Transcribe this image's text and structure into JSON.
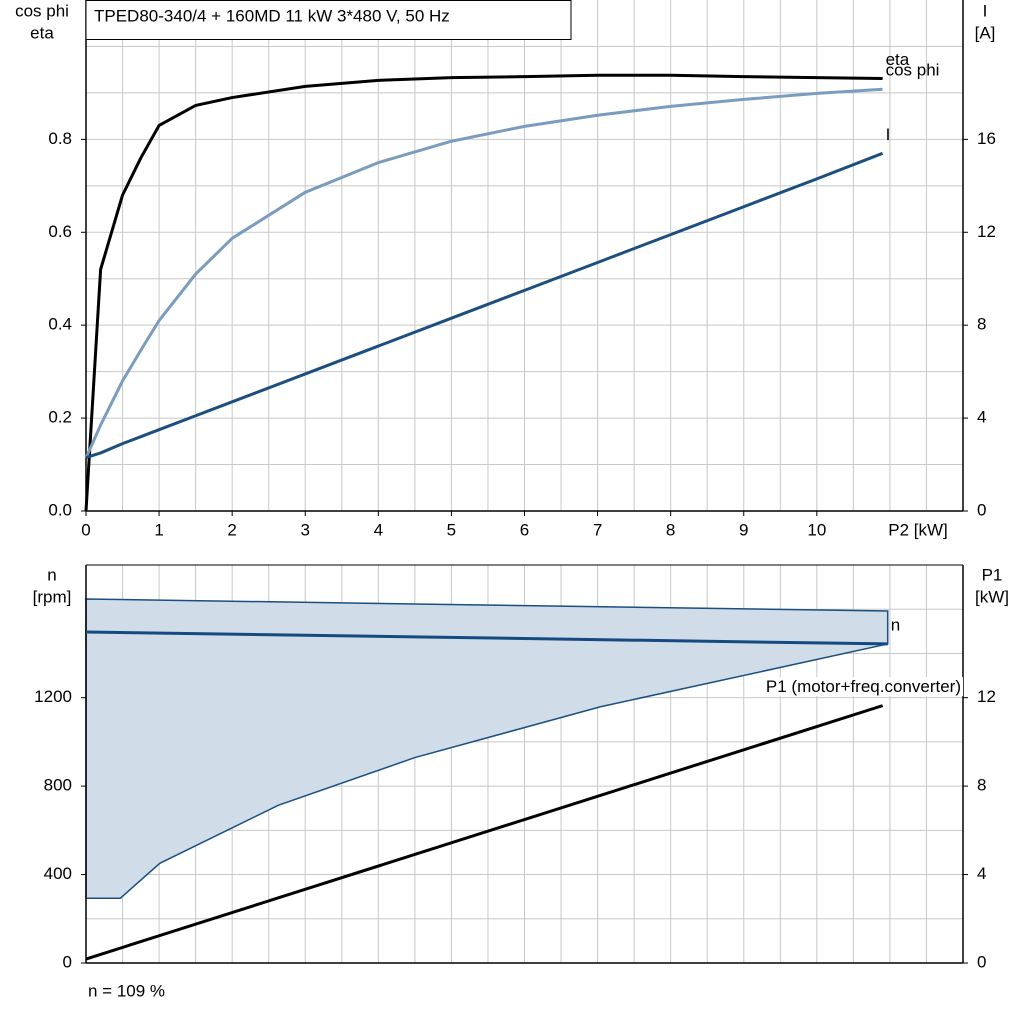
{
  "chart_data": [
    {
      "type": "line",
      "title": "TPED80-340/4 + 160MD   11 kW   3*480 V, 50 Hz",
      "ylabel": [
        "cos phi",
        "eta"
      ],
      "y2label": [
        "I",
        "[A]"
      ],
      "xlabel": "P2 [kW]",
      "x": [
        0,
        0.2,
        0.5,
        0.75,
        1,
        1.5,
        2,
        3,
        4,
        5,
        6,
        7,
        8,
        9,
        10,
        10.9
      ],
      "series": [
        {
          "name": "eta",
          "color": "#000000",
          "values": [
            0,
            0.52,
            0.68,
            0.76,
            0.83,
            0.873,
            0.89,
            0.914,
            0.927,
            0.933,
            0.935,
            0.938,
            0.938,
            0.935,
            0.933,
            0.931
          ]
        },
        {
          "name": "cos phi",
          "color": "#7a9cbf",
          "values": [
            0.114,
            0.185,
            0.28,
            0.346,
            0.41,
            0.51,
            0.587,
            0.686,
            0.75,
            0.796,
            0.828,
            0.852,
            0.871,
            0.886,
            0.899,
            0.908
          ]
        },
        {
          "name": "I",
          "color": "#1a4f80",
          "axis": "y2",
          "values": [
            2.3,
            2.5,
            2.9,
            3.2,
            3.5,
            4.1,
            4.7,
            5.9,
            7.1,
            8.3,
            9.5,
            10.7,
            11.9,
            13.1,
            14.3,
            15.4
          ]
        }
      ],
      "xlim": [
        0,
        12
      ],
      "xticks": [
        0,
        1,
        2,
        3,
        4,
        5,
        6,
        7,
        8,
        9,
        10
      ],
      "xgrid": [
        0.5,
        1,
        1.5,
        2,
        2.5,
        3,
        3.5,
        4,
        4.5,
        5,
        5.5,
        6,
        6.5,
        7,
        7.5,
        8,
        8.5,
        9,
        9.5,
        10,
        10.5,
        11,
        11.5
      ],
      "ylim": [
        0,
        1.1
      ],
      "yticks": [
        {
          "value": 0,
          "label": "0.0"
        },
        0.2,
        0.4,
        0.6,
        0.8
      ],
      "ygrid": [
        0.1,
        0.2,
        0.3,
        0.4,
        0.5,
        0.6,
        0.7,
        0.8,
        0.9,
        1.0
      ],
      "y2lim": [
        0,
        22
      ],
      "y2ticks": [
        0,
        4,
        8,
        12,
        16
      ],
      "grid": true
    },
    {
      "type": "line",
      "ylabel": [
        "n",
        "[rpm]"
      ],
      "y2label": [
        "P1",
        "[kW]"
      ],
      "annotation": "n = 109 %",
      "band": {
        "x_upper": [
          0,
          10.97
        ],
        "upper": [
          1646,
          1592
        ],
        "x_lower": [
          0,
          0.47,
          1.01,
          2.63,
          4.5,
          7.04,
          10.97
        ],
        "lower": [
          293,
          293,
          451,
          713,
          929,
          1159,
          1443
        ],
        "color": "#d0dce8",
        "edge": "#1a4f80"
      },
      "series": [
        {
          "name": "n",
          "color": "#144a80",
          "x": [
            0,
            10.97
          ],
          "values": [
            1497,
            1443
          ]
        },
        {
          "name": "P1 (motor+freq.converter)",
          "color": "#000000",
          "axis": "y2",
          "x": [
            0,
            10.9
          ],
          "values": [
            0.18,
            11.64
          ]
        }
      ],
      "xlim": [
        0,
        12
      ],
      "xgrid": [
        0.5,
        1,
        1.5,
        2,
        2.5,
        3,
        3.5,
        4,
        4.5,
        5,
        5.5,
        6,
        6.5,
        7,
        7.5,
        8,
        8.5,
        9,
        9.5,
        10,
        10.5,
        11,
        11.5
      ],
      "ylim": [
        0,
        1800
      ],
      "yticks": [
        0,
        400,
        800,
        1200
      ],
      "ygrid": [
        200,
        400,
        600,
        800,
        1000,
        1200,
        1400,
        1600
      ],
      "y2lim": [
        0,
        18
      ],
      "y2ticks": [
        0,
        4,
        8,
        12
      ],
      "grid": true
    }
  ]
}
